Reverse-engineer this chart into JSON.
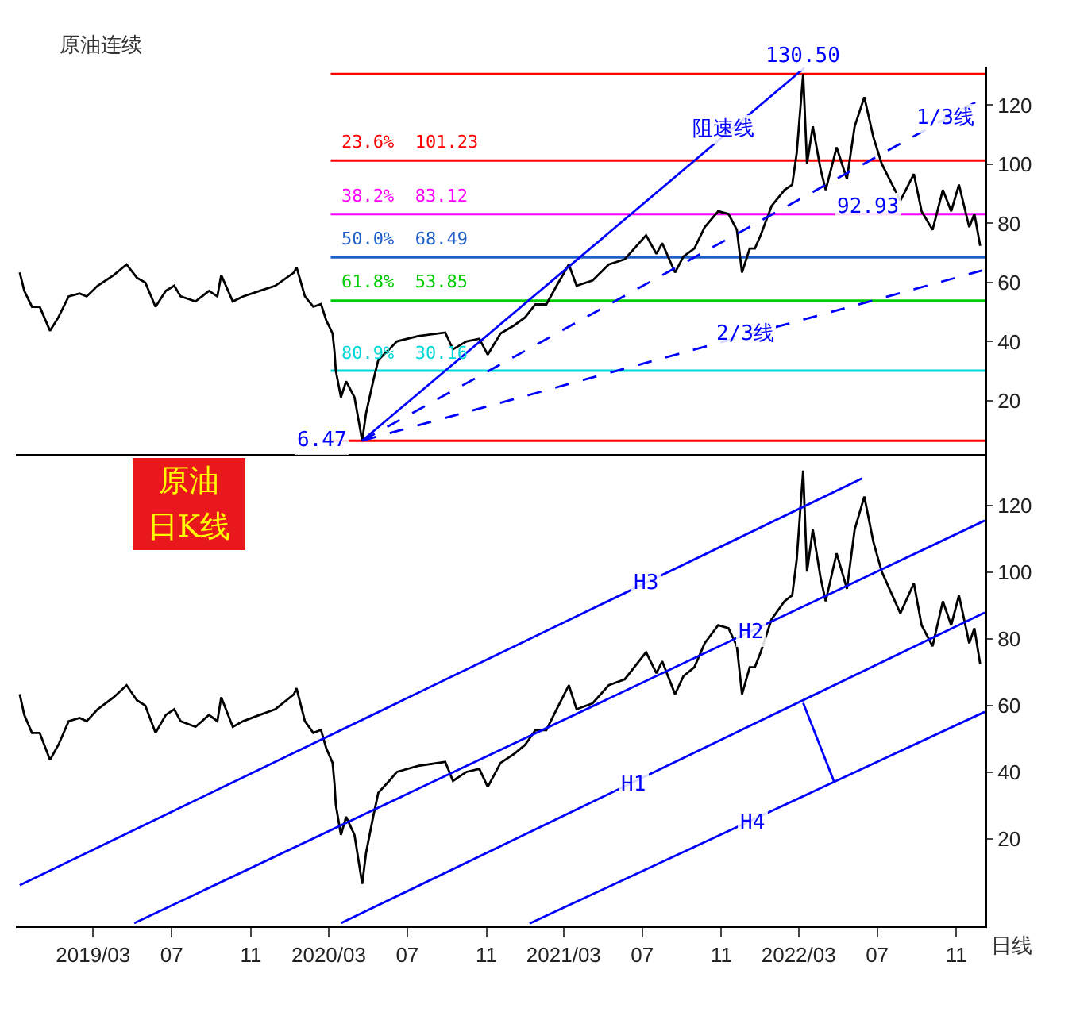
{
  "chart_data": [
    {
      "type": "line",
      "title": "原油连续",
      "xlim": [
        "2018-11-01",
        "2022-12-15"
      ],
      "ylim": [
        2,
        133
      ],
      "yticks": [
        20,
        40,
        60,
        80,
        100,
        120
      ],
      "tick_labels": "y",
      "grid": false,
      "marker": "none",
      "series": [
        {
          "color": "#000000",
          "x": [
            "2018-11-07",
            "2018-11-14",
            "2018-11-26",
            "2018-12-08",
            "2018-12-24",
            "2019-01-06",
            "2019-01-22",
            "2019-02-08",
            "2019-02-19",
            "2019-03-08",
            "2019-04-02",
            "2019-04-22",
            "2019-05-08",
            "2019-05-21",
            "2019-06-06",
            "2019-06-22",
            "2019-07-05",
            "2019-07-15",
            "2019-08-07",
            "2019-08-28",
            "2019-09-10",
            "2019-09-16",
            "2019-10-04",
            "2019-10-20",
            "2019-11-15",
            "2019-12-09",
            "2020-01-07",
            "2020-01-11",
            "2020-01-24",
            "2020-02-06",
            "2020-02-18",
            "2020-02-26",
            "2020-03-07",
            "2020-03-10",
            "2020-03-12",
            "2020-03-20",
            "2020-03-28",
            "2020-04-10",
            "2020-04-22",
            "2020-04-28",
            "2020-05-09",
            "2020-05-17",
            "2020-06-03",
            "2020-06-15",
            "2020-07-18",
            "2020-08-29",
            "2020-09-10",
            "2020-10-01",
            "2020-10-21",
            "2020-11-03",
            "2020-11-23",
            "2020-12-14",
            "2020-12-31",
            "2021-01-16",
            "2021-02-02",
            "2021-02-18",
            "2021-03-09",
            "2021-03-21",
            "2021-04-15",
            "2021-05-10",
            "2021-06-04",
            "2021-07-07",
            "2021-07-23",
            "2021-08-01",
            "2021-08-21",
            "2021-09-03",
            "2021-09-20",
            "2021-10-06",
            "2021-10-27",
            "2021-11-12",
            "2021-11-25",
            "2021-12-03",
            "2021-12-15",
            "2021-12-23",
            "2022-01-01",
            "2022-01-18",
            "2022-02-07",
            "2022-02-19",
            "2022-02-26",
            "2022-03-08",
            "2022-03-14",
            "2022-03-23",
            "2022-04-04",
            "2022-04-12",
            "2022-04-29",
            "2022-05-15",
            "2022-05-27",
            "2022-06-11",
            "2022-06-25",
            "2022-07-08",
            "2022-07-20",
            "2022-08-06",
            "2022-08-27",
            "2022-09-08",
            "2022-09-25",
            "2022-10-11",
            "2022-10-24",
            "2022-11-05",
            "2022-11-21",
            "2022-11-29",
            "2022-12-08"
          ],
          "values": [
            63.4,
            57.2,
            51.8,
            51.8,
            43.7,
            48.2,
            55.3,
            56.3,
            55.3,
            58.9,
            62.5,
            66.1,
            61.6,
            60.0,
            51.8,
            57.2,
            58.9,
            55.3,
            53.6,
            57.2,
            55.3,
            62.5,
            53.6,
            55.3,
            57.2,
            58.9,
            63.4,
            65.2,
            55.3,
            51.8,
            52.7,
            47.3,
            42.8,
            36.5,
            30.2,
            21.2,
            26.6,
            21.2,
            6.5,
            15.8,
            26.6,
            33.8,
            37.4,
            40.1,
            41.9,
            43.1,
            37.4,
            40.1,
            41.0,
            35.6,
            42.8,
            45.5,
            48.2,
            52.6,
            52.6,
            58.9,
            66.1,
            58.9,
            60.7,
            66.1,
            67.9,
            76.0,
            69.7,
            73.3,
            63.4,
            68.8,
            71.5,
            78.7,
            84.1,
            83.2,
            77.8,
            63.4,
            71.5,
            71.5,
            76.0,
            85.9,
            91.3,
            93.1,
            103.8,
            130.5,
            100.2,
            112.8,
            98.4,
            91.3,
            105.7,
            95.0,
            112.8,
            122.7,
            109.2,
            100.2,
            95.0,
            87.7,
            96.7,
            84.1,
            77.8,
            91.3,
            84.1,
            93.1,
            78.7,
            83.2,
            72.4
          ]
        },
        {
          "color": "#0000ff",
          "line_style": "solid",
          "x": [
            "2020-04-22",
            "2022-03-10"
          ],
          "values": [
            6.5,
            132.6
          ]
        },
        {
          "color": "#0000ff",
          "line_style": "dashed",
          "x": [
            "2020-04-22",
            "2022-12-15"
          ],
          "values": [
            6.5,
            122.7
          ]
        },
        {
          "color": "#0000ff",
          "line_style": "dashed",
          "x": [
            "2020-04-22",
            "2022-12-15"
          ],
          "values": [
            6.5,
            64.3
          ]
        }
      ],
      "ref_lines": [
        {
          "axis": "y",
          "value": 130.5,
          "label": null,
          "color": "#ff0000"
        },
        {
          "axis": "y",
          "value": 101.23,
          "label": "23.6%  101.23",
          "color": "#ff0000"
        },
        {
          "axis": "y",
          "value": 83.12,
          "label": "38.2%  83.12",
          "color": "#ff00ff"
        },
        {
          "axis": "y",
          "value": 68.49,
          "label": "50.0%  68.49",
          "color": "#1e5fc8"
        },
        {
          "axis": "y",
          "value": 53.85,
          "label": "61.8%  53.85",
          "color": "#00cc00"
        },
        {
          "axis": "y",
          "value": 30.16,
          "label": "80.9%  30.16",
          "color": "#00d8d8"
        },
        {
          "axis": "y",
          "value": 6.47,
          "label": null,
          "color": "#ff0000"
        }
      ],
      "annotations": [
        {
          "text": "130.50",
          "x": "2022-03-08",
          "y": 130.5
        },
        {
          "text": "92.93",
          "x": "2022-04-10",
          "y": 92.93
        },
        {
          "text": "6.47",
          "x": "2020-04-22",
          "y": 6.47
        },
        {
          "text": "阻速线",
          "x": "2021-11-04",
          "y": 111.9
        },
        {
          "text": "1/3线",
          "x": "2022-10-15",
          "y": 115.5
        },
        {
          "text": "2/3线",
          "x": "2021-12-07",
          "y": 42.8
        }
      ]
    },
    {
      "type": "line",
      "xlim": [
        "2018-11-01",
        "2022-12-15"
      ],
      "ylim": [
        -6,
        135
      ],
      "yticks": [
        20,
        40,
        60,
        80,
        100,
        120
      ],
      "xticks": [
        {
          "value": "2019-03-01",
          "label": "2019/03"
        },
        {
          "value": "2019-07-01",
          "label": "07"
        },
        {
          "value": "2019-11-01",
          "label": "11"
        },
        {
          "value": "2020-03-01",
          "label": "2020/03"
        },
        {
          "value": "2020-07-01",
          "label": "07"
        },
        {
          "value": "2020-11-01",
          "label": "11"
        },
        {
          "value": "2021-03-01",
          "label": "2021/03"
        },
        {
          "value": "2021-07-01",
          "label": "07"
        },
        {
          "value": "2021-11-01",
          "label": "11"
        },
        {
          "value": "2022-03-01",
          "label": "2022/03"
        },
        {
          "value": "2022-07-01",
          "label": "07"
        },
        {
          "value": "2022-11-01",
          "label": "11"
        }
      ],
      "grid": false,
      "marker": "none",
      "series": [
        {
          "color": "#000000",
          "x": [
            "2018-11-07",
            "2018-11-14",
            "2018-11-26",
            "2018-12-08",
            "2018-12-24",
            "2019-01-06",
            "2019-01-22",
            "2019-02-08",
            "2019-02-19",
            "2019-03-08",
            "2019-04-02",
            "2019-04-22",
            "2019-05-08",
            "2019-05-21",
            "2019-06-06",
            "2019-06-22",
            "2019-07-05",
            "2019-07-15",
            "2019-08-07",
            "2019-08-28",
            "2019-09-10",
            "2019-09-16",
            "2019-10-04",
            "2019-10-20",
            "2019-11-15",
            "2019-12-09",
            "2020-01-07",
            "2020-01-11",
            "2020-01-24",
            "2020-02-06",
            "2020-02-18",
            "2020-02-26",
            "2020-03-07",
            "2020-03-10",
            "2020-03-12",
            "2020-03-20",
            "2020-03-28",
            "2020-04-10",
            "2020-04-22",
            "2020-04-28",
            "2020-05-09",
            "2020-05-17",
            "2020-06-03",
            "2020-06-15",
            "2020-07-18",
            "2020-08-29",
            "2020-09-10",
            "2020-10-01",
            "2020-10-21",
            "2020-11-03",
            "2020-11-23",
            "2020-12-14",
            "2020-12-31",
            "2021-01-16",
            "2021-02-02",
            "2021-02-18",
            "2021-03-09",
            "2021-03-21",
            "2021-04-15",
            "2021-05-10",
            "2021-06-04",
            "2021-07-07",
            "2021-07-23",
            "2021-08-01",
            "2021-08-21",
            "2021-09-03",
            "2021-09-20",
            "2021-10-06",
            "2021-10-27",
            "2021-11-12",
            "2021-11-25",
            "2021-12-03",
            "2021-12-15",
            "2021-12-23",
            "2022-01-01",
            "2022-01-18",
            "2022-02-07",
            "2022-02-19",
            "2022-02-26",
            "2022-03-08",
            "2022-03-14",
            "2022-03-23",
            "2022-04-04",
            "2022-04-12",
            "2022-04-29",
            "2022-05-15",
            "2022-05-27",
            "2022-06-11",
            "2022-06-25",
            "2022-07-08",
            "2022-07-20",
            "2022-08-06",
            "2022-08-27",
            "2022-09-08",
            "2022-09-25",
            "2022-10-11",
            "2022-10-24",
            "2022-11-05",
            "2022-11-21",
            "2022-11-29",
            "2022-12-08"
          ],
          "values": [
            63.4,
            57.2,
            51.8,
            51.8,
            43.7,
            48.2,
            55.3,
            56.3,
            55.3,
            58.9,
            62.5,
            66.1,
            61.6,
            60.0,
            51.8,
            57.2,
            58.9,
            55.3,
            53.6,
            57.2,
            55.3,
            62.5,
            53.6,
            55.3,
            57.2,
            58.9,
            63.4,
            65.2,
            55.3,
            51.8,
            52.7,
            47.3,
            42.8,
            36.5,
            30.2,
            21.2,
            26.6,
            21.2,
            6.5,
            15.8,
            26.6,
            33.8,
            37.4,
            40.1,
            41.9,
            43.1,
            37.4,
            40.1,
            41.0,
            35.6,
            42.8,
            45.5,
            48.2,
            52.6,
            52.6,
            58.9,
            66.1,
            58.9,
            60.7,
            66.1,
            67.9,
            76.0,
            69.7,
            73.3,
            63.4,
            68.8,
            71.5,
            78.7,
            84.1,
            83.2,
            77.8,
            63.4,
            71.5,
            71.5,
            76.0,
            85.9,
            91.3,
            93.1,
            103.8,
            130.5,
            100.2,
            112.8,
            98.4,
            91.3,
            105.7,
            95.0,
            112.8,
            122.7,
            109.2,
            100.2,
            95.0,
            87.7,
            96.7,
            84.1,
            77.8,
            91.3,
            84.1,
            93.1,
            78.7,
            83.2,
            72.4
          ]
        },
        {
          "color": "#0000ff",
          "x": [
            "2018-11-07",
            "2022-06-08"
          ],
          "values": [
            6.1,
            128.2
          ]
        },
        {
          "color": "#0000ff",
          "x": [
            "2019-05-04",
            "2022-12-15"
          ],
          "values": [
            -5.3,
            115.5
          ]
        },
        {
          "color": "#0000ff",
          "x": [
            "2020-03-20",
            "2022-12-15"
          ],
          "values": [
            -5.3,
            87.9
          ]
        },
        {
          "color": "#0000ff",
          "x": [
            "2021-01-07",
            "2022-12-15"
          ],
          "values": [
            -5.4,
            58.1
          ]
        },
        {
          "color": "#0000ff",
          "x": [
            "2022-03-08",
            "2022-04-25"
          ],
          "values": [
            60.8,
            37.2
          ]
        }
      ],
      "annotations": [
        "原油",
        "日K线",
        "日线",
        {
          "text": "H3",
          "x": "2021-07-07",
          "y": 96.6
        },
        {
          "text": "H2",
          "x": "2021-12-17",
          "y": 81.8
        },
        {
          "text": "H1",
          "x": "2021-06-17",
          "y": 36.0
        },
        {
          "text": "H4",
          "x": "2021-12-21",
          "y": 24.5
        }
      ]
    }
  ]
}
